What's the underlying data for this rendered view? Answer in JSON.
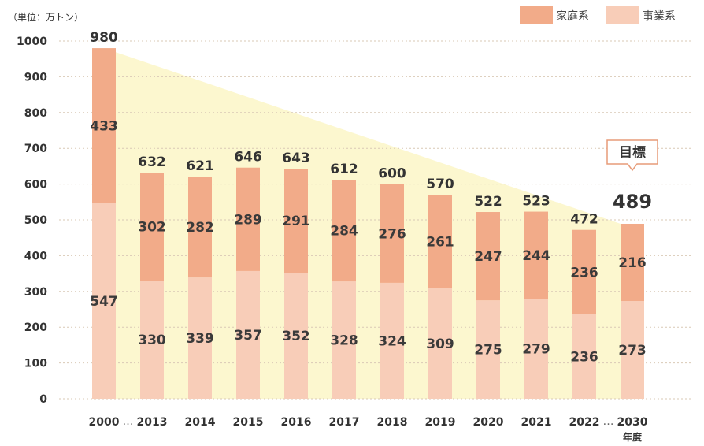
{
  "chart_data": {
    "type": "bar",
    "stacked": true,
    "unit_label": "（単位：万トン）",
    "categories": [
      "2000",
      "2013",
      "2014",
      "2015",
      "2016",
      "2017",
      "2018",
      "2019",
      "2020",
      "2021",
      "2022",
      "2030"
    ],
    "category_gaps": [
      "…",
      "…"
    ],
    "x_suffix_label": "年度",
    "series": [
      {
        "name": "事業系",
        "values": [
          547,
          330,
          339,
          357,
          352,
          328,
          324,
          309,
          275,
          279,
          236,
          273
        ],
        "color": "#f8cdb8"
      },
      {
        "name": "家庭系",
        "values": [
          433,
          302,
          282,
          289,
          291,
          284,
          276,
          261,
          247,
          244,
          236,
          216
        ],
        "color": "#f2ab89"
      }
    ],
    "totals": [
      980,
      632,
      621,
      646,
      643,
      612,
      600,
      570,
      522,
      523,
      472,
      489
    ],
    "ylim": [
      0,
      1000
    ],
    "yticks": [
      0,
      100,
      200,
      300,
      400,
      500,
      600,
      700,
      800,
      900,
      1000
    ],
    "grid": true,
    "legend_position": "top-right",
    "target": {
      "label": "目標",
      "category": "2030"
    },
    "trend_fill_color": "#fcf7cf"
  }
}
